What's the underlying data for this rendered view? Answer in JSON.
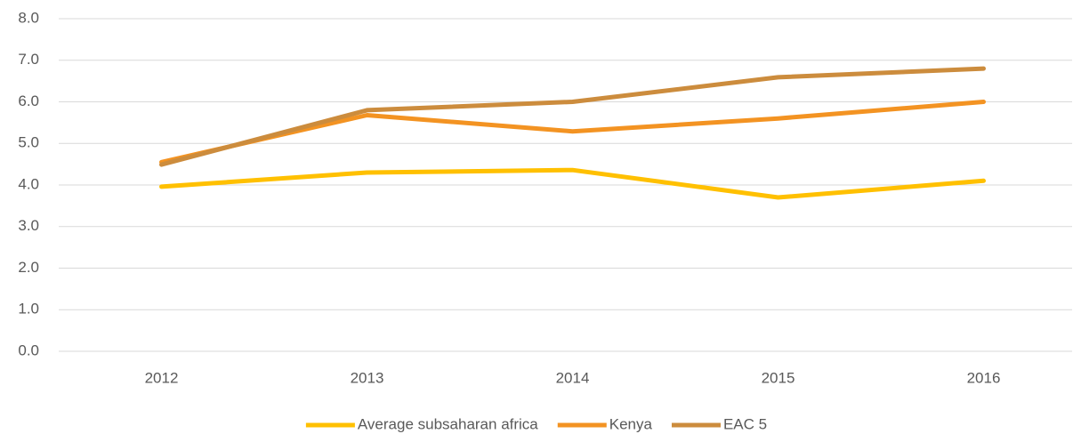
{
  "chart_data": {
    "type": "line",
    "categories": [
      "2012",
      "2013",
      "2014",
      "2015",
      "2016"
    ],
    "series": [
      {
        "name": "Average subsaharan africa",
        "color": "#ffc000",
        "values": [
          3.96,
          4.3,
          4.36,
          3.7,
          4.1
        ]
      },
      {
        "name": "Kenya",
        "color": "#f39322",
        "values": [
          4.55,
          5.68,
          5.29,
          5.6,
          6.0
        ]
      },
      {
        "name": "EAC 5",
        "color": "#cc8c3d",
        "values": [
          4.49,
          5.8,
          6.0,
          6.59,
          6.8
        ]
      }
    ],
    "ylim": [
      0,
      8
    ],
    "yticks": [
      {
        "value": 0,
        "label": "0.0"
      },
      {
        "value": 1,
        "label": "1.0"
      },
      {
        "value": 2,
        "label": "2.0"
      },
      {
        "value": 3,
        "label": "3.0"
      },
      {
        "value": 4,
        "label": "4.0"
      },
      {
        "value": 5,
        "label": "5.0"
      },
      {
        "value": 6,
        "label": "6.0"
      },
      {
        "value": 7,
        "label": "7.0"
      },
      {
        "value": 8,
        "label": "8.0"
      }
    ],
    "grid": true,
    "legend": "bottom"
  }
}
